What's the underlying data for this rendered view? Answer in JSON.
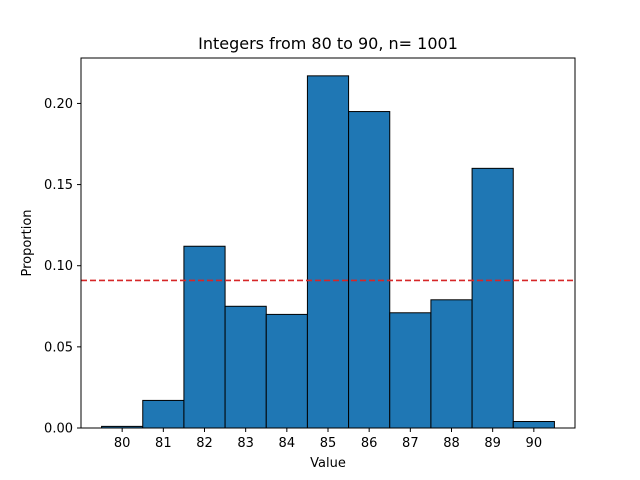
{
  "chart_data": {
    "type": "bar",
    "title": "Integers from 80 to 90, n= 1001",
    "xlabel": "Value",
    "ylabel": "Proportion",
    "categories": [
      80,
      81,
      82,
      83,
      84,
      85,
      86,
      87,
      88,
      89,
      90
    ],
    "values": [
      0.001,
      0.017,
      0.112,
      0.075,
      0.07,
      0.217,
      0.195,
      0.071,
      0.079,
      0.16,
      0.004
    ],
    "xticks": [
      "80",
      "81",
      "82",
      "83",
      "84",
      "85",
      "86",
      "87",
      "88",
      "89",
      "90"
    ],
    "yticks": [
      0.0,
      0.05,
      0.1,
      0.15,
      0.2
    ],
    "ytick_labels": [
      "0.00",
      "0.05",
      "0.10",
      "0.15",
      "0.20"
    ],
    "xlim": [
      79,
      91
    ],
    "ylim": [
      0,
      0.228
    ],
    "reference_line": {
      "value": 0.0909,
      "style": "dashed",
      "color": "#d62728"
    },
    "bar_color": "#1f77b4",
    "edge_color": "#000000",
    "grid": false
  }
}
